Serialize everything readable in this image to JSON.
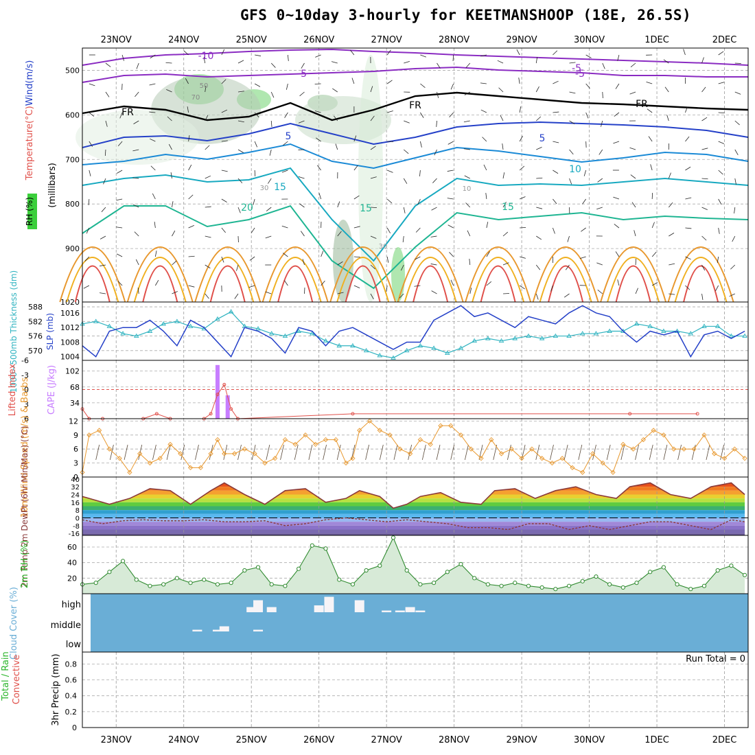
{
  "header": {
    "title": "GFS 0~10day 3-hourly for KEETMANSHOOP (18E, 26.5S)"
  },
  "date_axis": [
    "23NOV",
    "24NOV",
    "25NOV",
    "26NOV",
    "27NOV",
    "28NOV",
    "29NOV",
    "30NOV",
    "1DEC",
    "2DEC"
  ],
  "colors": {
    "cape": "#c77dff",
    "lifted_index": "#e0504a",
    "thickness": "#2fb3c0",
    "slp": "#2440c8",
    "wind_speed": "#e8982e",
    "rh": "#2ab52a",
    "cloud": "#6aaed6",
    "temp_line": "#8a3a3a"
  },
  "chart_data": [
    {
      "panel": "upper-air",
      "type": "heatmap",
      "ylabel_parts": [
        "Temperature",
        "(°C)",
        "Wind",
        "(m/s)"
      ],
      "ylabel_rh": "RH (%)",
      "ylabel_pressure": "(millibars)",
      "yticks": [
        500,
        600,
        700,
        800,
        900,
        1020
      ],
      "ylim": [
        1020,
        450
      ],
      "isotherm_labels": [
        "-10",
        "-5",
        "-5",
        "-5",
        "FR",
        "FR",
        "FR",
        "5",
        "5",
        "10",
        "15",
        "15",
        "15",
        "20",
        "30",
        "30",
        "10",
        "50",
        "70"
      ]
    },
    {
      "panel": "thickness-slp",
      "type": "line",
      "ylabel_left": "1000~500mb Thickness (dm)",
      "ylabel_right": "SLP (mb)",
      "yticks_left": [
        588,
        582,
        576,
        570
      ],
      "yticks_right": [
        1016,
        1012,
        1008,
        1004
      ],
      "series": [
        {
          "name": "1000~500mb Thickness (dm)",
          "x": [
            22.5,
            22.7,
            22.9,
            23.1,
            23.3,
            23.5,
            23.7,
            23.9,
            24.1,
            24.3,
            24.5,
            24.7,
            24.9,
            25.1,
            25.3,
            25.5,
            25.7,
            25.9,
            26.1,
            26.3,
            26.5,
            26.7,
            26.9,
            27.1,
            27.3,
            27.5,
            27.7,
            27.9,
            28.1,
            28.3,
            28.5,
            28.7,
            28.9,
            29.1,
            29.3,
            29.5,
            29.7,
            29.9,
            30.1,
            30.3,
            30.5,
            30.7,
            30.9,
            31.1,
            31.3,
            31.5,
            31.7,
            31.9,
            32.1,
            32.3
          ],
          "values": [
            581,
            582,
            580,
            577,
            576,
            578,
            581,
            582,
            580,
            579,
            583,
            586,
            580,
            579,
            577,
            576,
            578,
            577,
            574,
            572,
            572,
            570,
            568,
            567,
            570,
            572,
            571,
            569,
            571,
            574,
            575,
            574,
            575,
            576,
            575,
            576,
            576,
            577,
            577,
            578,
            578,
            581,
            580,
            578,
            578,
            577,
            580,
            580,
            576,
            576
          ]
        },
        {
          "name": "SLP (mb)",
          "x": [
            22.5,
            22.7,
            22.9,
            23.1,
            23.3,
            23.5,
            23.7,
            23.9,
            24.1,
            24.3,
            24.5,
            24.7,
            24.9,
            25.1,
            25.3,
            25.5,
            25.7,
            25.9,
            26.1,
            26.3,
            26.5,
            26.7,
            26.9,
            27.1,
            27.3,
            27.5,
            27.7,
            27.9,
            28.1,
            28.3,
            28.5,
            28.7,
            28.9,
            29.1,
            29.3,
            29.5,
            29.7,
            29.9,
            30.1,
            30.3,
            30.5,
            30.7,
            30.9,
            31.1,
            31.3,
            31.5,
            31.7,
            31.9,
            32.1,
            32.3
          ],
          "values": [
            1007,
            1004,
            1011,
            1012,
            1012,
            1014,
            1011,
            1007,
            1014,
            1012,
            1008,
            1004,
            1012,
            1011,
            1009,
            1005,
            1012,
            1011,
            1007,
            1011,
            1012,
            1010,
            1008,
            1006,
            1008,
            1008,
            1014,
            1016,
            1018,
            1015,
            1016,
            1014,
            1012,
            1015,
            1014,
            1013,
            1016,
            1018,
            1016,
            1015,
            1011,
            1008,
            1011,
            1010,
            1011,
            1004,
            1010,
            1011,
            1009,
            1011
          ]
        }
      ]
    },
    {
      "panel": "lifted-index-cape",
      "type": "bar",
      "ylabel_left": "Lifted Index",
      "ylabel_right": "CAPE (J/kg)",
      "yticks_left": [
        -6,
        -3,
        0,
        3,
        6
      ],
      "yticks_right": [
        102,
        68,
        34
      ],
      "series": [
        {
          "name": "CAPE (J/kg)",
          "x": [
            24.5,
            24.65
          ],
          "values": [
            115,
            50
          ]
        },
        {
          "name": "Lifted Index",
          "x": [
            22.5,
            22.6,
            22.8,
            23.4,
            23.6,
            23.8,
            24.3,
            24.4,
            24.5,
            24.6,
            24.7,
            24.8,
            26.5,
            30.6,
            31.6
          ],
          "values": [
            4,
            6,
            6,
            6,
            5,
            6,
            6,
            5,
            1,
            -1,
            4,
            6,
            5,
            5,
            5
          ]
        }
      ]
    },
    {
      "panel": "10m-wind",
      "type": "line",
      "ylabel": "10m Wind Speed (m/s) & Barbs",
      "yticks": [
        0,
        3,
        6,
        9,
        12
      ],
      "ylim": [
        0,
        12.5
      ],
      "series": [
        {
          "name": "10m Wind Speed",
          "x": [
            22.5,
            22.6,
            22.75,
            22.9,
            23.05,
            23.2,
            23.35,
            23.5,
            23.65,
            23.8,
            23.95,
            24.1,
            24.25,
            24.4,
            24.5,
            24.6,
            24.75,
            24.9,
            25.05,
            25.2,
            25.35,
            25.5,
            25.65,
            25.8,
            25.95,
            26.1,
            26.25,
            26.4,
            26.5,
            26.6,
            26.75,
            26.9,
            27.05,
            27.2,
            27.35,
            27.5,
            27.65,
            27.8,
            27.95,
            28.1,
            28.25,
            28.4,
            28.55,
            28.7,
            28.85,
            29,
            29.15,
            29.3,
            29.45,
            29.6,
            29.75,
            29.9,
            30.05,
            30.2,
            30.35,
            30.5,
            30.65,
            30.8,
            30.95,
            31.1,
            31.25,
            31.4,
            31.55,
            31.7,
            31.85,
            32,
            32.15,
            32.3
          ],
          "values": [
            1,
            9,
            10,
            6,
            4,
            1,
            5,
            3,
            4,
            7,
            5,
            2,
            2,
            5,
            8,
            5,
            5,
            6,
            5,
            3,
            4,
            8,
            7,
            9,
            7,
            8,
            8,
            3,
            4,
            10,
            12,
            10,
            9,
            6,
            5,
            8,
            7,
            11,
            11,
            9,
            6,
            4,
            8,
            5,
            6,
            4,
            6,
            4,
            3,
            4,
            2,
            1,
            5,
            3,
            1,
            7,
            6,
            8,
            10,
            9,
            6,
            6,
            6,
            9,
            5,
            4,
            6,
            4
          ]
        }
      ]
    },
    {
      "panel": "2m-temp",
      "type": "area",
      "ylabel": "2m Temp 2m DewPt (6hr Min/Max) (°C)",
      "yticks": [
        40,
        32,
        24,
        16,
        8,
        0,
        -8,
        -16
      ],
      "series": [
        {
          "name": "2m Temp",
          "x": [
            22.5,
            22.9,
            23.2,
            23.5,
            23.8,
            24.1,
            24.4,
            24.6,
            24.9,
            25.2,
            25.5,
            25.8,
            26.1,
            26.4,
            26.6,
            26.9,
            27.1,
            27.3,
            27.5,
            27.8,
            28.1,
            28.4,
            28.6,
            28.9,
            29.2,
            29.5,
            29.8,
            30.1,
            30.4,
            30.6,
            30.9,
            31.2,
            31.5,
            31.8,
            32.1,
            32.3
          ],
          "values": [
            22,
            14,
            20,
            30,
            28,
            14,
            28,
            36,
            24,
            14,
            28,
            30,
            16,
            20,
            28,
            22,
            10,
            14,
            22,
            26,
            16,
            14,
            28,
            30,
            20,
            28,
            32,
            24,
            20,
            32,
            36,
            24,
            20,
            32,
            36,
            24
          ]
        },
        {
          "name": "2m DewPt",
          "x": [
            22.5,
            22.8,
            23.1,
            23.4,
            23.7,
            24,
            24.3,
            24.6,
            24.9,
            25.2,
            25.5,
            25.8,
            26.1,
            26.4,
            26.7,
            27,
            27.3,
            27.6,
            27.9,
            28.2,
            28.5,
            28.8,
            29.1,
            29.4,
            29.7,
            30,
            30.3,
            30.6,
            30.9,
            31.2,
            31.5,
            31.8,
            32.1,
            32.3
          ],
          "values": [
            -2,
            -6,
            -3,
            -2,
            -3,
            -3,
            -2,
            -4,
            -4,
            -3,
            -8,
            -6,
            -2,
            0,
            -2,
            -4,
            -2,
            -4,
            -6,
            -10,
            -10,
            -12,
            -6,
            -6,
            -12,
            -8,
            -12,
            -8,
            -4,
            -4,
            -8,
            -12,
            -2,
            -4
          ]
        }
      ]
    },
    {
      "panel": "2m-rh",
      "type": "area",
      "ylabel": "2m RH (%)",
      "yticks": [
        20,
        40,
        60
      ],
      "series": [
        {
          "name": "2m RH",
          "x": [
            22.5,
            22.7,
            22.9,
            23.1,
            23.3,
            23.5,
            23.7,
            23.9,
            24.1,
            24.3,
            24.5,
            24.7,
            24.9,
            25.1,
            25.3,
            25.5,
            25.7,
            25.9,
            26.1,
            26.3,
            26.5,
            26.7,
            26.9,
            27.1,
            27.3,
            27.5,
            27.7,
            27.9,
            28.1,
            28.3,
            28.5,
            28.7,
            28.9,
            29.1,
            29.3,
            29.5,
            29.7,
            29.9,
            30.1,
            30.3,
            30.5,
            30.7,
            30.9,
            31.1,
            31.3,
            31.5,
            31.7,
            31.9,
            32.1,
            32.3
          ],
          "values": [
            12,
            14,
            28,
            42,
            18,
            10,
            12,
            20,
            14,
            18,
            12,
            14,
            30,
            34,
            12,
            10,
            32,
            62,
            58,
            18,
            12,
            30,
            36,
            72,
            30,
            12,
            14,
            28,
            38,
            20,
            12,
            10,
            14,
            10,
            8,
            6,
            10,
            16,
            22,
            12,
            8,
            14,
            28,
            34,
            12,
            6,
            10,
            30,
            36,
            24
          ]
        }
      ]
    },
    {
      "panel": "cloud-cover",
      "type": "bar",
      "ylabel": "Cloud Cover (%)",
      "yticks": [
        "high",
        "middle",
        "low"
      ],
      "series": [
        {
          "name": "high",
          "x": [
            25.0,
            25.1,
            25.3,
            26.0,
            26.15,
            26.6,
            27.0,
            27.2,
            27.35,
            27.5
          ],
          "values": [
            30,
            70,
            30,
            40,
            90,
            70,
            10,
            10,
            30,
            10
          ]
        },
        {
          "name": "middle",
          "x": [
            24.2,
            24.5,
            24.6,
            25.1
          ],
          "values": [
            10,
            10,
            30,
            10
          ]
        }
      ]
    },
    {
      "panel": "precip",
      "type": "bar",
      "ylabel_parts": [
        "Total / Rain",
        "Convective",
        "3hr Precip (mm)"
      ],
      "yticks": [
        0,
        0.2,
        0.4,
        0.6,
        0.8
      ],
      "ylim": [
        0,
        0.95
      ],
      "annotation": "Run Total = 0",
      "series": [
        {
          "name": "Total / Rain",
          "values": []
        },
        {
          "name": "Convective",
          "values": []
        }
      ]
    }
  ]
}
